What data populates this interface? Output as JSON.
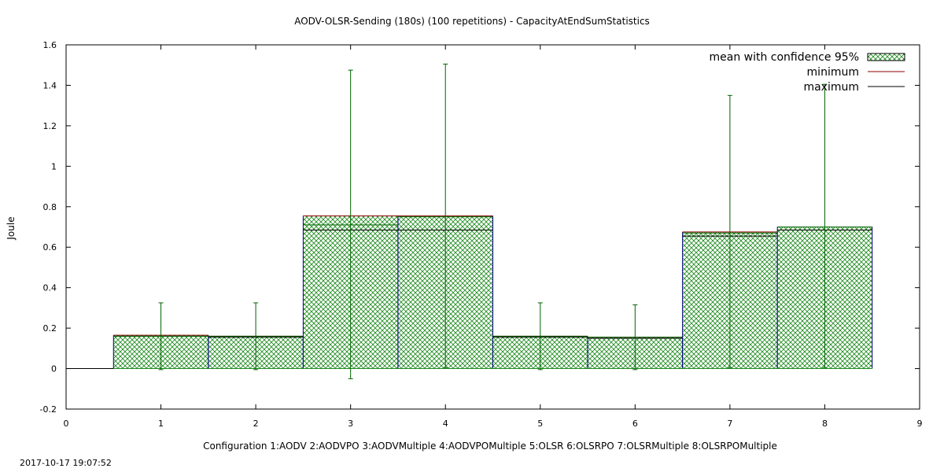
{
  "chart_data": {
    "type": "bar",
    "title": "AODV-OLSR-Sending (180s) (100 repetitions) - CapacityAtEndSumStatistics",
    "xlabel": "Configuration 1:AODV  2:AODVPO  3:AODVMultiple  4:AODVPOMultiple  5:OLSR  6:OLSRPO  7:OLSRMultiple  8:OLSRPOMultiple",
    "ylabel": "Joule",
    "xlim": [
      0,
      9
    ],
    "ylim": [
      -0.2,
      1.6
    ],
    "xticks": [
      "0",
      "1",
      "2",
      "3",
      "4",
      "5",
      "6",
      "7",
      "8",
      "9"
    ],
    "yticks": [
      "-0.2",
      "0",
      "0.2",
      "0.4",
      "0.6",
      "0.8",
      "1",
      "1.2",
      "1.4",
      "1.6"
    ],
    "x": [
      1,
      2,
      3,
      4,
      5,
      6,
      7,
      8
    ],
    "series": [
      {
        "name": "mean with confidence 95%",
        "values": [
          0.16,
          0.16,
          0.71,
          0.75,
          0.16,
          0.155,
          0.67,
          0.7
        ],
        "error_low": [
          -0.005,
          -0.005,
          -0.05,
          0.005,
          -0.005,
          -0.005,
          0.005,
          0.005
        ],
        "error_high": [
          0.325,
          0.325,
          1.475,
          1.505,
          0.325,
          0.315,
          1.35,
          1.405
        ],
        "color": "#006400"
      },
      {
        "name": "minimum",
        "values": [
          0.165,
          0.16,
          0.755,
          0.755,
          0.16,
          0.155,
          0.675,
          0.7
        ],
        "color": "#8b0000"
      },
      {
        "name": "maximum",
        "values": [
          0.16,
          0.155,
          0.685,
          0.685,
          0.155,
          0.15,
          0.655,
          0.685
        ],
        "color": "#000000"
      }
    ],
    "grid": false,
    "legend_position": "top-right"
  },
  "footer": {
    "timestamp": "2017-10-17 19:07:52"
  }
}
